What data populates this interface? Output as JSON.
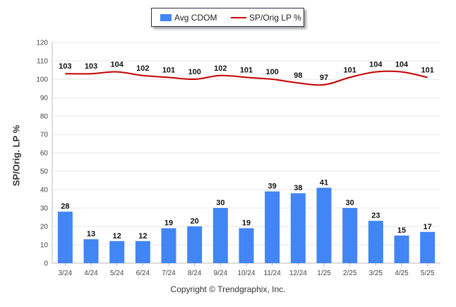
{
  "legend": {
    "bar_label": "Avg CDOM",
    "line_label": "SP/Orig LP %"
  },
  "credit": "Copyright © Trendgraphix, Inc.",
  "colors": {
    "bar": "#4285f4",
    "line": "#c40000",
    "grid": "#e6e6e6"
  },
  "chart_data": {
    "type": "bar",
    "ylabel": "SP/Orig. LP %",
    "xlabel": "",
    "ylim": [
      0,
      120
    ],
    "yticks": [
      0,
      10,
      20,
      30,
      40,
      50,
      60,
      70,
      80,
      90,
      100,
      110,
      120
    ],
    "grid": true,
    "legend_position": "top-center",
    "categories": [
      "3/24",
      "4/24",
      "5/24",
      "6/24",
      "7/24",
      "8/24",
      "9/24",
      "10/24",
      "11/24",
      "12/24",
      "1/25",
      "2/25",
      "3/25",
      "4/25",
      "5/25"
    ],
    "series": [
      {
        "name": "Avg CDOM",
        "kind": "bar",
        "values": [
          28,
          13,
          12,
          12,
          19,
          20,
          30,
          19,
          39,
          38,
          41,
          30,
          23,
          15,
          17
        ]
      },
      {
        "name": "SP/Orig LP %",
        "kind": "line",
        "values": [
          103,
          103,
          104,
          102,
          101,
          100,
          102,
          101,
          100,
          98,
          97,
          101,
          104,
          104,
          101
        ]
      }
    ]
  }
}
